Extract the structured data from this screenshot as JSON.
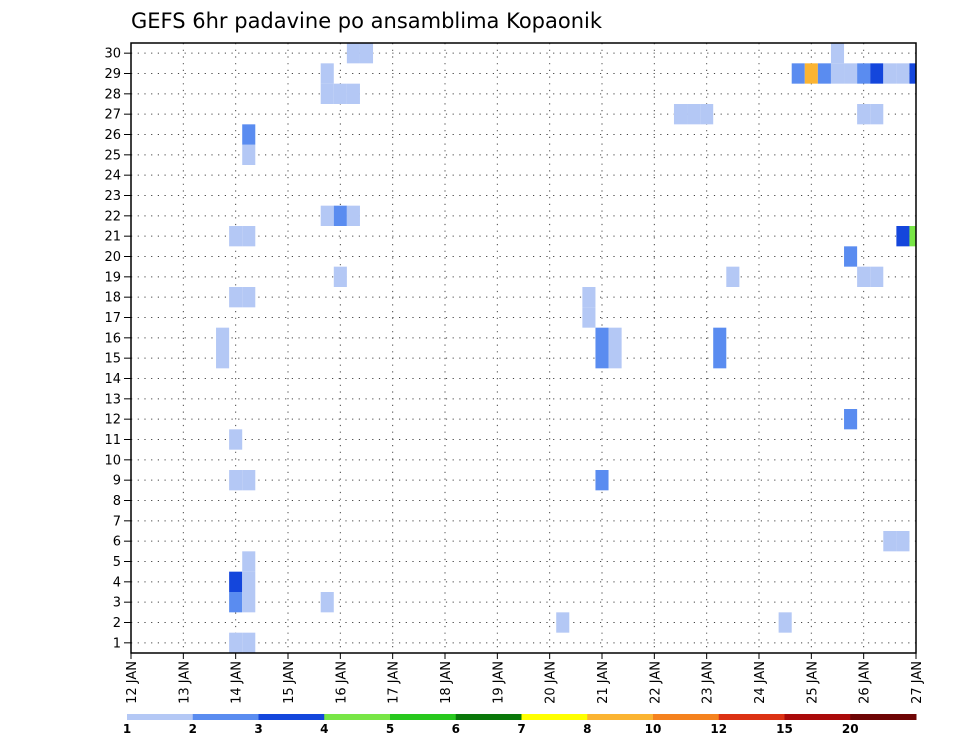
{
  "chart_data": {
    "type": "heatmap",
    "title": "GEFS 6hr padavine po ansamblima Kopaonik",
    "x_ticks": [
      "12 JAN",
      "13 JAN",
      "14 JAN",
      "15 JAN",
      "16 JAN",
      "17 JAN",
      "18 JAN",
      "19 JAN",
      "20 JAN",
      "21 JAN",
      "22 JAN",
      "23 JAN",
      "24 JAN",
      "25 JAN",
      "26 JAN",
      "27 JAN"
    ],
    "y_ticks": [
      1,
      2,
      3,
      4,
      5,
      6,
      7,
      8,
      9,
      10,
      11,
      12,
      13,
      14,
      15,
      16,
      17,
      18,
      19,
      20,
      21,
      22,
      23,
      24,
      25,
      26,
      27,
      28,
      29,
      30
    ],
    "x_step_hours": 6,
    "colorbar": {
      "labels": [
        "1",
        "2",
        "3",
        "4",
        "5",
        "6",
        "7",
        "8",
        "10",
        "12",
        "15",
        "20"
      ],
      "colors": [
        "#b4c8f5",
        "#5a8cf0",
        "#1446dc",
        "#78e646",
        "#28c81e",
        "#0a780a",
        "#ffff00",
        "#fbb432",
        "#f5821e",
        "#dc3214",
        "#aa0a0a",
        "#6e0505"
      ]
    },
    "cells": [
      {
        "member": 1,
        "x": "14 JAN 00Z",
        "level": 0
      },
      {
        "member": 1,
        "x": "14 JAN 06Z",
        "level": 0
      },
      {
        "member": 2,
        "x": "20 JAN 06Z",
        "level": 0
      },
      {
        "member": 2,
        "x": "24 JAN 12Z",
        "level": 0
      },
      {
        "member": 3,
        "x": "14 JAN 00Z",
        "level": 1
      },
      {
        "member": 3,
        "x": "14 JAN 06Z",
        "level": 0
      },
      {
        "member": 3,
        "x": "15 JAN 18Z",
        "level": 0
      },
      {
        "member": 4,
        "x": "14 JAN 00Z",
        "level": 2
      },
      {
        "member": 4,
        "x": "14 JAN 06Z",
        "level": 0
      },
      {
        "member": 5,
        "x": "14 JAN 06Z",
        "level": 0
      },
      {
        "member": 6,
        "x": "26 JAN 12Z",
        "level": 0
      },
      {
        "member": 6,
        "x": "26 JAN 18Z",
        "level": 0
      },
      {
        "member": 9,
        "x": "14 JAN 00Z",
        "level": 0
      },
      {
        "member": 9,
        "x": "14 JAN 06Z",
        "level": 0
      },
      {
        "member": 9,
        "x": "21 JAN 00Z",
        "level": 1
      },
      {
        "member": 11,
        "x": "14 JAN 00Z",
        "level": 0
      },
      {
        "member": 12,
        "x": "25 JAN 18Z",
        "level": 1
      },
      {
        "member": 15,
        "x": "13 JAN 18Z",
        "level": 0
      },
      {
        "member": 15,
        "x": "21 JAN 00Z",
        "level": 1
      },
      {
        "member": 15,
        "x": "21 JAN 06Z",
        "level": 0
      },
      {
        "member": 15,
        "x": "23 JAN 06Z",
        "level": 1
      },
      {
        "member": 16,
        "x": "13 JAN 18Z",
        "level": 0
      },
      {
        "member": 16,
        "x": "21 JAN 00Z",
        "level": 1
      },
      {
        "member": 16,
        "x": "21 JAN 06Z",
        "level": 0
      },
      {
        "member": 16,
        "x": "23 JAN 06Z",
        "level": 1
      },
      {
        "member": 17,
        "x": "20 JAN 18Z",
        "level": 0
      },
      {
        "member": 18,
        "x": "14 JAN 00Z",
        "level": 0
      },
      {
        "member": 18,
        "x": "14 JAN 06Z",
        "level": 0
      },
      {
        "member": 18,
        "x": "20 JAN 18Z",
        "level": 0
      },
      {
        "member": 19,
        "x": "16 JAN 00Z",
        "level": 0
      },
      {
        "member": 19,
        "x": "23 JAN 12Z",
        "level": 0
      },
      {
        "member": 19,
        "x": "26 JAN 00Z",
        "level": 0
      },
      {
        "member": 19,
        "x": "26 JAN 06Z",
        "level": 0
      },
      {
        "member": 20,
        "x": "25 JAN 18Z",
        "level": 1
      },
      {
        "member": 21,
        "x": "14 JAN 00Z",
        "level": 0
      },
      {
        "member": 21,
        "x": "14 JAN 06Z",
        "level": 0
      },
      {
        "member": 21,
        "x": "26 JAN 18Z",
        "level": 2
      },
      {
        "member": 21,
        "x": "27 JAN 00Z",
        "level": 3
      },
      {
        "member": 22,
        "x": "15 JAN 18Z",
        "level": 0
      },
      {
        "member": 22,
        "x": "16 JAN 00Z",
        "level": 1
      },
      {
        "member": 22,
        "x": "16 JAN 06Z",
        "level": 0
      },
      {
        "member": 25,
        "x": "14 JAN 06Z",
        "level": 0
      },
      {
        "member": 26,
        "x": "14 JAN 06Z",
        "level": 1
      },
      {
        "member": 27,
        "x": "22 JAN 12Z",
        "level": 0
      },
      {
        "member": 27,
        "x": "22 JAN 18Z",
        "level": 0
      },
      {
        "member": 27,
        "x": "23 JAN 00Z",
        "level": 0
      },
      {
        "member": 27,
        "x": "26 JAN 00Z",
        "level": 0
      },
      {
        "member": 27,
        "x": "26 JAN 06Z",
        "level": 0
      },
      {
        "member": 28,
        "x": "15 JAN 18Z",
        "level": 0
      },
      {
        "member": 28,
        "x": "16 JAN 00Z",
        "level": 0
      },
      {
        "member": 28,
        "x": "16 JAN 06Z",
        "level": 0
      },
      {
        "member": 29,
        "x": "15 JAN 18Z",
        "level": 0
      },
      {
        "member": 29,
        "x": "24 JAN 18Z",
        "level": 1
      },
      {
        "member": 29,
        "x": "25 JAN 00Z",
        "level": 7
      },
      {
        "member": 29,
        "x": "25 JAN 06Z",
        "level": 1
      },
      {
        "member": 29,
        "x": "25 JAN 12Z",
        "level": 0
      },
      {
        "member": 29,
        "x": "25 JAN 18Z",
        "level": 0
      },
      {
        "member": 29,
        "x": "26 JAN 00Z",
        "level": 1
      },
      {
        "member": 29,
        "x": "26 JAN 06Z",
        "level": 2
      },
      {
        "member": 29,
        "x": "26 JAN 12Z",
        "level": 0
      },
      {
        "member": 29,
        "x": "26 JAN 18Z",
        "level": 0
      },
      {
        "member": 29,
        "x": "27 JAN 00Z",
        "level": 2
      },
      {
        "member": 30,
        "x": "16 JAN 06Z",
        "level": 0
      },
      {
        "member": 30,
        "x": "16 JAN 12Z",
        "level": 0
      },
      {
        "member": 30,
        "x": "25 JAN 12Z",
        "level": 0
      }
    ]
  }
}
